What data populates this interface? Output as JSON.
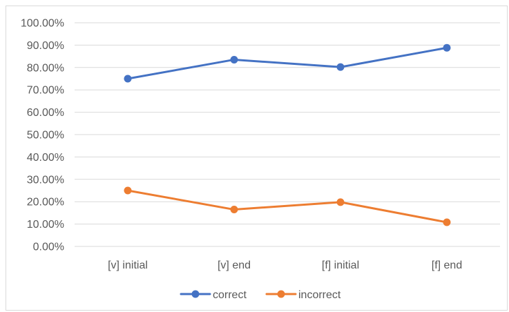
{
  "chart_data": {
    "type": "line",
    "title": "",
    "xlabel": "",
    "ylabel": "",
    "categories": [
      "[v] initial",
      "[v] end",
      "[f] initial",
      "[f] end"
    ],
    "y_tick_labels": [
      "0.00%",
      "10.00%",
      "20.00%",
      "30.00%",
      "40.00%",
      "50.00%",
      "60.00%",
      "70.00%",
      "80.00%",
      "90.00%",
      "100.00%"
    ],
    "ylim": [
      0,
      1
    ],
    "y_format": "percent",
    "grid": true,
    "legend_position": "bottom",
    "series": [
      {
        "name": "correct",
        "color": "#4472c4",
        "values": [
          0.75,
          0.835,
          0.802,
          0.888
        ]
      },
      {
        "name": "incorrect",
        "color": "#ed7d31",
        "values": [
          0.25,
          0.165,
          0.198,
          0.108
        ]
      }
    ]
  },
  "colors": {
    "gridline": "#d9d9d9",
    "axis_text": "#595959",
    "frame_border": "#d9d9d9"
  }
}
